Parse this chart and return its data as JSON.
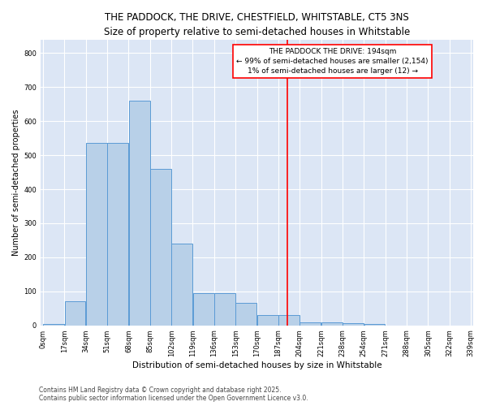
{
  "title_line1": "THE PADDOCK, THE DRIVE, CHESTFIELD, WHITSTABLE, CT5 3NS",
  "title_line2": "Size of property relative to semi-detached houses in Whitstable",
  "xlabel": "Distribution of semi-detached houses by size in Whitstable",
  "ylabel": "Number of semi-detached properties",
  "bin_starts": [
    0,
    17,
    34,
    51,
    68,
    85,
    102,
    119,
    136,
    153,
    170,
    187,
    204,
    221,
    238,
    255,
    272,
    289,
    306,
    323
  ],
  "counts": [
    3,
    70,
    535,
    535,
    660,
    460,
    240,
    95,
    95,
    65,
    30,
    30,
    10,
    10,
    7,
    3,
    0,
    0,
    0,
    0
  ],
  "bin_width": 17,
  "bar_facecolor": "#b8d0e8",
  "bar_edgecolor": "#5b9bd5",
  "vline_x": 194,
  "vline_color": "red",
  "ann_title": "THE PADDOCK THE DRIVE: 194sqm",
  "ann_line2": "← 99% of semi-detached houses are smaller (2,154)",
  "ann_line3": "1% of semi-detached houses are larger (12) →",
  "ann_box_fc": "white",
  "ann_box_ec": "red",
  "footnote1": "Contains HM Land Registry data © Crown copyright and database right 2025.",
  "footnote2": "Contains public sector information licensed under the Open Government Licence v3.0.",
  "bg_color": "#dce6f5",
  "fig_bg": "#ffffff",
  "ylim_max": 840,
  "yticks": [
    0,
    100,
    200,
    300,
    400,
    500,
    600,
    700,
    800
  ],
  "xtick_labels": [
    "0sqm",
    "17sqm",
    "34sqm",
    "51sqm",
    "68sqm",
    "85sqm",
    "102sqm",
    "119sqm",
    "136sqm",
    "153sqm",
    "170sqm",
    "187sqm",
    "204sqm",
    "221sqm",
    "238sqm",
    "254sqm",
    "271sqm",
    "288sqm",
    "305sqm",
    "322sqm",
    "339sqm"
  ],
  "title1_fontsize": 8.5,
  "title2_fontsize": 7.5,
  "xlabel_fontsize": 7.5,
  "ylabel_fontsize": 7,
  "tick_fontsize": 6,
  "ann_fontsize": 6.5,
  "footnote_fontsize": 5.5
}
